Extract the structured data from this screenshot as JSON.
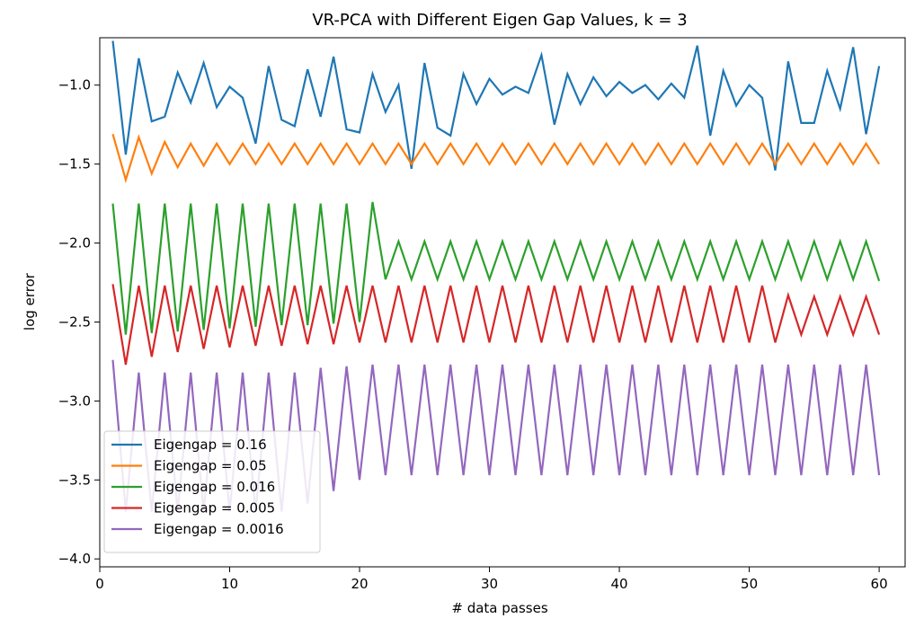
{
  "chart_data": {
    "type": "line",
    "title": "VR-PCA with Different Eigen Gap Values, k = 3",
    "xlabel": "# data passes",
    "ylabel": "log error",
    "xlim": [
      0,
      62
    ],
    "ylim": [
      -4.05,
      -0.7
    ],
    "xticks": [
      0,
      10,
      20,
      30,
      40,
      50,
      60
    ],
    "yticks": [
      -4.0,
      -3.5,
      -3.0,
      -2.5,
      -2.0,
      -1.5,
      -1.0
    ],
    "ytick_labels": [
      "−4.0",
      "−3.5",
      "−3.0",
      "−2.5",
      "−2.0",
      "−1.5",
      "−1.0"
    ],
    "xtick_labels": [
      "0",
      "10",
      "20",
      "30",
      "40",
      "50",
      "60"
    ],
    "grid": false,
    "legend_position": "lower-left",
    "x": [
      1,
      2,
      3,
      4,
      5,
      6,
      7,
      8,
      9,
      10,
      11,
      12,
      13,
      14,
      15,
      16,
      17,
      18,
      19,
      20,
      21,
      22,
      23,
      24,
      25,
      26,
      27,
      28,
      29,
      30,
      31,
      32,
      33,
      34,
      35,
      36,
      37,
      38,
      39,
      40,
      41,
      42,
      43,
      44,
      45,
      46,
      47,
      48,
      49,
      50,
      51,
      52,
      53,
      54,
      55,
      56,
      57,
      58,
      59,
      60
    ],
    "series": [
      {
        "name": "Eigengap = 0.16",
        "color": "#1f77b4",
        "values": [
          -0.72,
          -1.44,
          -0.83,
          -1.23,
          -1.2,
          -0.92,
          -1.11,
          -0.86,
          -1.14,
          -1.01,
          -1.08,
          -1.37,
          -0.88,
          -1.22,
          -1.26,
          -0.9,
          -1.2,
          -0.82,
          -1.28,
          -1.3,
          -0.93,
          -1.17,
          -1.0,
          -1.53,
          -0.86,
          -1.27,
          -1.32,
          -0.93,
          -1.12,
          -0.96,
          -1.06,
          -1.01,
          -1.05,
          -0.81,
          -1.25,
          -0.93,
          -1.12,
          -0.95,
          -1.07,
          -0.98,
          -1.05,
          -1.0,
          -1.09,
          -0.99,
          -1.08,
          -0.75,
          -1.32,
          -0.91,
          -1.13,
          -1.0,
          -1.08,
          -1.54,
          -0.85,
          -1.24,
          -1.24,
          -0.91,
          -1.15,
          -0.76,
          -1.31,
          -0.88
        ]
      },
      {
        "name": "Eigengap = 0.05",
        "color": "#ff7f0e",
        "values": [
          -1.31,
          -1.6,
          -1.33,
          -1.56,
          -1.36,
          -1.52,
          -1.37,
          -1.51,
          -1.37,
          -1.5,
          -1.37,
          -1.5,
          -1.37,
          -1.5,
          -1.37,
          -1.5,
          -1.37,
          -1.5,
          -1.37,
          -1.5,
          -1.37,
          -1.5,
          -1.37,
          -1.5,
          -1.37,
          -1.5,
          -1.37,
          -1.5,
          -1.37,
          -1.5,
          -1.37,
          -1.5,
          -1.37,
          -1.5,
          -1.37,
          -1.5,
          -1.37,
          -1.5,
          -1.37,
          -1.5,
          -1.37,
          -1.5,
          -1.37,
          -1.5,
          -1.37,
          -1.5,
          -1.37,
          -1.5,
          -1.37,
          -1.5,
          -1.37,
          -1.5,
          -1.37,
          -1.5,
          -1.37,
          -1.5,
          -1.37,
          -1.5,
          -1.37,
          -1.5
        ]
      },
      {
        "name": "Eigengap = 0.016",
        "color": "#2ca02c",
        "values": [
          -1.75,
          -2.58,
          -1.75,
          -2.57,
          -1.75,
          -2.56,
          -1.75,
          -2.55,
          -1.75,
          -2.54,
          -1.75,
          -2.53,
          -1.75,
          -2.52,
          -1.75,
          -2.52,
          -1.75,
          -2.51,
          -1.75,
          -2.5,
          -1.74,
          -2.23,
          -1.99,
          -2.23,
          -1.99,
          -2.23,
          -1.99,
          -2.23,
          -1.99,
          -2.23,
          -1.99,
          -2.23,
          -1.99,
          -2.23,
          -1.99,
          -2.23,
          -1.99,
          -2.23,
          -1.99,
          -2.23,
          -1.99,
          -2.23,
          -1.99,
          -2.23,
          -1.99,
          -2.23,
          -1.99,
          -2.23,
          -1.99,
          -2.23,
          -1.99,
          -2.23,
          -1.99,
          -2.23,
          -1.99,
          -2.23,
          -1.99,
          -2.23,
          -1.99,
          -2.24
        ]
      },
      {
        "name": "Eigengap = 0.005",
        "color": "#d62728",
        "values": [
          -2.26,
          -2.77,
          -2.27,
          -2.72,
          -2.27,
          -2.69,
          -2.27,
          -2.67,
          -2.27,
          -2.66,
          -2.27,
          -2.65,
          -2.27,
          -2.65,
          -2.27,
          -2.64,
          -2.27,
          -2.64,
          -2.27,
          -2.63,
          -2.27,
          -2.63,
          -2.27,
          -2.63,
          -2.27,
          -2.63,
          -2.27,
          -2.63,
          -2.27,
          -2.63,
          -2.27,
          -2.63,
          -2.27,
          -2.63,
          -2.27,
          -2.63,
          -2.27,
          -2.63,
          -2.27,
          -2.63,
          -2.27,
          -2.63,
          -2.27,
          -2.63,
          -2.27,
          -2.63,
          -2.27,
          -2.63,
          -2.27,
          -2.63,
          -2.27,
          -2.63,
          -2.33,
          -2.58,
          -2.34,
          -2.58,
          -2.34,
          -2.58,
          -2.34,
          -2.58
        ]
      },
      {
        "name": "Eigengap = 0.0016",
        "color": "#9467bd",
        "values": [
          -2.74,
          -3.7,
          -2.82,
          -3.7,
          -2.82,
          -3.7,
          -2.82,
          -3.7,
          -2.82,
          -3.7,
          -2.82,
          -3.7,
          -2.82,
          -3.7,
          -2.82,
          -3.65,
          -2.79,
          -3.57,
          -2.78,
          -3.5,
          -2.77,
          -3.47,
          -2.77,
          -3.47,
          -2.77,
          -3.47,
          -2.77,
          -3.47,
          -2.77,
          -3.47,
          -2.77,
          -3.47,
          -2.77,
          -3.47,
          -2.77,
          -3.47,
          -2.77,
          -3.47,
          -2.77,
          -3.47,
          -2.77,
          -3.47,
          -2.77,
          -3.47,
          -2.77,
          -3.47,
          -2.77,
          -3.47,
          -2.77,
          -3.47,
          -2.77,
          -3.47,
          -2.77,
          -3.47,
          -2.77,
          -3.47,
          -2.77,
          -3.47,
          -2.77,
          -3.47
        ]
      }
    ]
  }
}
